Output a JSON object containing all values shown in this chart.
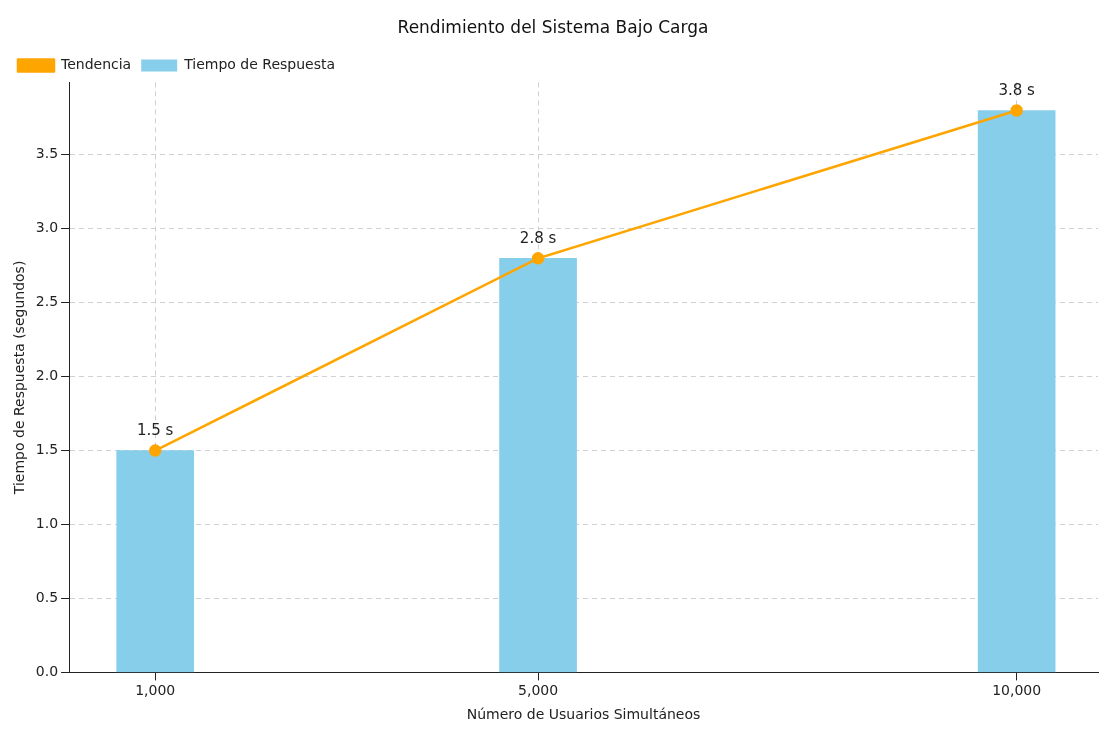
{
  "chart_data": {
    "type": "bar",
    "title": "Rendimiento del Sistema Bajo Carga",
    "xlabel": "Número de Usuarios Simultáneos",
    "ylabel": "Tiempo de Respuesta (segundos)",
    "x": [
      1000,
      5000,
      10000
    ],
    "xlim": [
      100,
      10850
    ],
    "xticks": [
      {
        "value": 1000,
        "label": "1,000"
      },
      {
        "value": 5000,
        "label": "5,000"
      },
      {
        "value": 10000,
        "label": "10,000"
      }
    ],
    "ylim": [
      0,
      3.99
    ],
    "yticks": [
      {
        "value": 0,
        "label": "0.0"
      },
      0.5,
      {
        "value": 1,
        "label": "1.0"
      },
      1.5,
      {
        "value": 2,
        "label": "2.0"
      },
      2.5,
      {
        "value": 3,
        "label": "3.0"
      },
      3.5
    ],
    "series": [
      {
        "name": "Tendencia",
        "type": "line",
        "color": "#ffa500",
        "values": [
          1.5,
          2.8,
          3.8
        ],
        "marker": "circle",
        "line_style": "solid"
      },
      {
        "name": "Tiempo de Respuesta",
        "color": "#87ceeb",
        "values": [
          1.5,
          2.8,
          3.8
        ],
        "value_labels": [
          "1.5 s",
          "2.8 s",
          "3.8 s"
        ]
      }
    ],
    "grid": true,
    "legend": "top left"
  }
}
